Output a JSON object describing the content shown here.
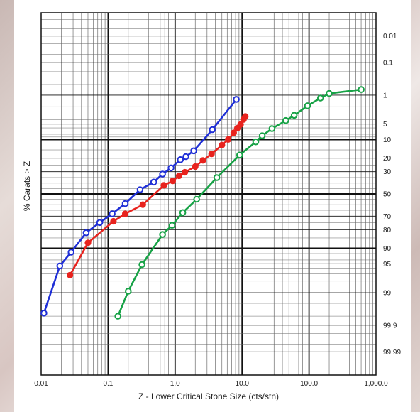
{
  "chart_data": {
    "type": "line",
    "title": "",
    "xlabel": "Z - Lower Critical Stone Size (cts/stn)",
    "ylabel": "% Carats > Z",
    "x_scale": "log",
    "y_scale": "probability",
    "xlim": [
      0.01,
      1000
    ],
    "ylim": [
      0.001,
      99.999
    ],
    "grid": true,
    "x_ticks": [
      "0.01",
      "0.1",
      "1.0",
      "10.0",
      "100.0",
      "1,000.0"
    ],
    "y_ticks": [
      "0.01",
      "0.1",
      "1",
      "5",
      "10",
      "20",
      "30",
      "50",
      "70",
      "80",
      "90",
      "95",
      "99",
      "99.9",
      "99.99"
    ],
    "y_tick_values": [
      0.01,
      0.1,
      1,
      5,
      10,
      20,
      30,
      50,
      70,
      80,
      90,
      95,
      99,
      99.9,
      99.99
    ],
    "series": [
      {
        "color": "#1f2fd6",
        "marker": "open-circle",
        "x": [
          0.011,
          0.019,
          0.028,
          0.047,
          0.075,
          0.115,
          0.18,
          0.3,
          0.48,
          0.65,
          0.87,
          1.2,
          1.45,
          1.9,
          3.6,
          8.2
        ],
        "y": [
          99.75,
          95.5,
          91.5,
          82,
          75,
          68,
          59,
          46,
          39,
          32,
          27,
          21,
          19,
          15.5,
          6.5,
          1.3
        ]
      },
      {
        "color": "#e8231e",
        "marker": "filled-circle",
        "x": [
          0.027,
          0.05,
          0.12,
          0.18,
          0.33,
          0.68,
          0.92,
          1.15,
          1.4,
          2.0,
          2.6,
          3.5,
          5.0,
          6.2,
          7.5,
          8.5,
          9.5,
          10.5,
          11.2
        ],
        "y": [
          97.2,
          87.5,
          74,
          68,
          60,
          42,
          38,
          33.5,
          30.5,
          26,
          21.5,
          17.3,
          12.5,
          10,
          7.5,
          6.1,
          5.1,
          4.0,
          3.4
        ]
      },
      {
        "color": "#17a246",
        "marker": "open-circle",
        "x": [
          0.14,
          0.2,
          0.32,
          0.65,
          0.9,
          1.3,
          2.1,
          4.2,
          9.2,
          16,
          20,
          28,
          45,
          60,
          95,
          148,
          200,
          600
        ],
        "y": [
          99.8,
          98.9,
          95.2,
          83,
          77,
          67,
          55,
          35,
          18,
          11,
          8.5,
          6.2,
          4.2,
          3.2,
          1.9,
          1.2,
          0.9,
          0.7
        ]
      }
    ]
  }
}
